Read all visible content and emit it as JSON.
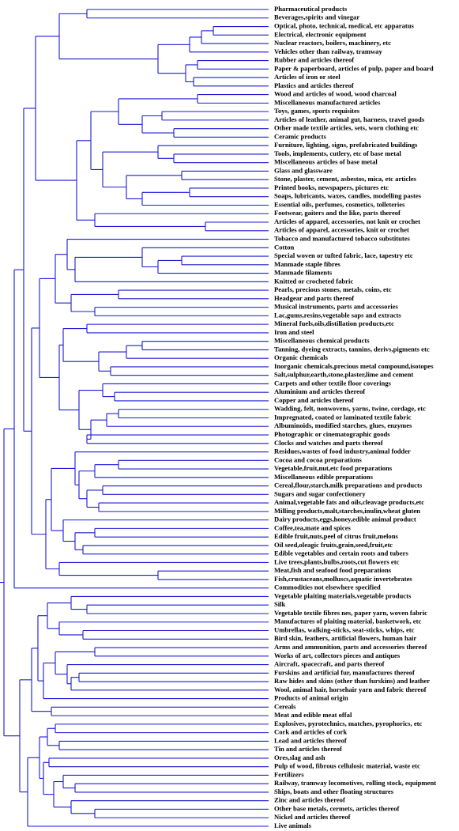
{
  "leaves": [
    "Pharmaceutical products",
    "Beverages,spirits and vinegar",
    "Optical, photo, technical, medical, etc apparatus",
    "Electrical, electronic equipment",
    "Nuclear reactors, boilers, machinery, etc",
    "Vehicles other than railway, tramway",
    "Rubber and articles thereof",
    "Paper & paperboard, articles of pulp, paper and board",
    "Articles of iron or steel",
    "Plastics and articles thereof",
    "Wood and articles of wood, wood charcoal",
    "Miscellaneous manufactured articles",
    "Toys, games, sports requisites",
    "Articles of leather, animal gut, harness, travel goods",
    "Other made textile articles, sets, worn clothing etc",
    "Ceramic products",
    "Furniture, lighting, signs, prefabricated buildings",
    "Tools, implements, cutlery, etc of base metal",
    "Miscellaneous articles of base metal",
    "Glass and glassware",
    "Stone, plaster, cement, asbestos, mica, etc articles",
    "Printed books, newspapers, pictures etc",
    "Soaps, lubricants, waxes, candles, modelling pastes",
    "Essential oils, perfumes, cosmetics, tolleteries",
    "Footwear, gaiters and the like, parts thereof",
    "Articles of apparel, accessories, not knit or crochet",
    "Articles of apparel, accessories, knit or crochet",
    "Tobacco and manufactured tobacco substitutes",
    "Cotton",
    "Special woven or tufted fabric, lace, tapestry etc",
    "Manmade staple fibres",
    "Manmade filaments",
    "Knitted or crocheted fabric",
    "Pearls, precious stones, metals, coins, etc",
    "Headgear and parts thereof",
    "Musical instruments, parts and accessories",
    "Lac,gums,resins,vegetable saps and extracts",
    "Mineral fuels,oils,distillation products,etc",
    "Iron and steel",
    "Miscellaneous chemical products",
    "Tanning, dyeing extracts, tannins, derivs,pigments etc",
    "Organic chemicals",
    "Inorganic chemicals,precious metal compound,isotopes",
    "Salt,sulphur,earth,stone,plaster,lime and cement",
    "Carpets and other textile floor coverings",
    "Aluminium and articles thereof",
    "Copper and articles thereof",
    "Wadding, felt, nonwovens, yarns, twine, cordage, etc",
    "Impregnated, coated or laminated textile fabric",
    "Albuminoids, modified starches, glues, enzymes",
    "Photographic or cinematographic goods",
    "Clocks and watches and parts thereof",
    "Residues,wastes of food industry,animal fodder",
    "Cocoa and cocoa preparations",
    "Vegetable,fruit,nut,etc food preparations",
    "Miscellaneous edible preparations",
    "Cereal,flour,starch,milk preparations and products",
    "Sugars and sugar confectionery",
    "Animal,vegetable fats and oils,cleavage products,etc",
    "Milling products,malt,starches,inulin,wheat gluten",
    "Dairy products,eggs,honey,edible animal product",
    "Coffee,tea,mate and spices",
    "Edible fruit,nuts,peel of citrus fruit,melons",
    "Oil seed,oleagic fruits,grain,seed,fruit,etc",
    "Edible vegetables and certain roots and tubers",
    "Live trees,plants,bulbs,roots,cut flowers etc",
    "Meat,fish and seafood food preparations",
    "Fish,crustaceans,molluscs,aquatic invertebrates",
    "Commodities not elsewhere specified",
    "Vegetable plaiting materials,vegetable products",
    "Silk",
    "Vegetable textile fibres nes, paper yarn, woven fabric",
    "Manufactures of plaiting material, basketwork, etc",
    "Umbrellas, walking-sticks, seat-sticks, whips, etc",
    "Bird skin, feathers, artificial flowers, human hair",
    "Arms and ammunition, parts and accessories thereof",
    "Works of art, collectors pieces and antiques",
    "Aircraft, spacecraft, and parts thereof",
    "Furskins and artificial fur, manufactures thereof",
    "Raw hides and skins (other than furskins) and leather",
    "Wool, animal hair, horsehair yarn and fabric thereof",
    "Products of animal origin",
    "Cereals",
    "Meat and edible meat offal",
    "Explosives, pyrotechnics, matches, pyrophorics, etc",
    "Cork and articles of cork",
    "Lead and articles thereof",
    "Tin and articles thereof",
    "Ores,slag and ash",
    "Pulp of wood, fibrous cellulosic material, waste etc",
    "Fertilizers",
    "Railway, tramway locomotives, rolling stock, equipment",
    "Ships, boats and other floating structures",
    "Zinc and articles thereof",
    "Other base metals, cermets, articles thereof",
    "Nickel and articles thereof",
    "Live animals"
  ]
}
